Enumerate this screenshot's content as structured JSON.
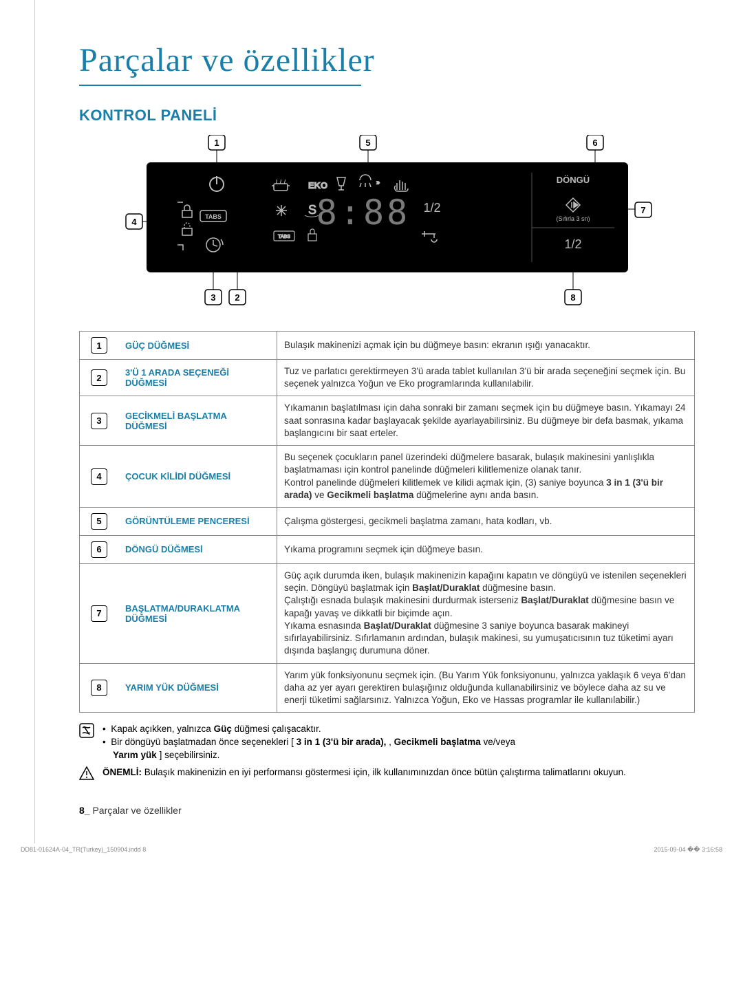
{
  "page": {
    "title": "Parçalar ve özellikler",
    "section_heading": "KONTROL PANELİ",
    "footer_text_prefix": "8_",
    "footer_text": "Parçalar ve özellikler",
    "print_left": "DD81-01624A-04_TR(Turkey)_150904.indd   8",
    "print_right": "2015-09-04   �� 3:16:58"
  },
  "panel": {
    "labels": {
      "tabs": "TABS",
      "eko": "EKO",
      "dongu": "DÖNGÜ",
      "reset": "(Sıfırla 3 sn)",
      "half": "1/2",
      "time": "8:88"
    },
    "callouts": [
      "1",
      "2",
      "3",
      "4",
      "5",
      "6",
      "7",
      "8"
    ],
    "colors": {
      "panel_bg": "#000",
      "panel_text": "#cfd2d3",
      "box_border": "#000"
    }
  },
  "features": [
    {
      "num": "1",
      "label": "GÜÇ DÜĞMESİ",
      "desc": "Bulaşık makinenizi açmak için bu düğmeye basın: ekranın ışığı yanacaktır."
    },
    {
      "num": "2",
      "label": "3'Ü 1 ARADA SEÇENEĞİ DÜĞMESİ",
      "desc": "Tuz ve parlatıcı gerektirmeyen 3'ü arada tablet kullanılan 3'ü bir arada seçeneğini seçmek için. Bu seçenek yalnızca Yoğun ve Eko programlarında kullanılabilir."
    },
    {
      "num": "3",
      "label": "GECİKMELİ BAŞLATMA DÜĞMESİ",
      "desc": "Yıkamanın başlatılması için daha sonraki bir zamanı seçmek için bu düğmeye basın. Yıkamayı 24 saat sonrasına kadar başlayacak şekilde ayarlayabilirsiniz. Bu düğmeye bir defa basmak, yıkama başlangıcını bir saat erteler."
    },
    {
      "num": "4",
      "label": "ÇOCUK KİLİDİ DÜĞMESİ",
      "desc": "Bu seçenek çocukların panel üzerindeki düğmelere basarak, bulaşık makinesini yanlışlıkla başlatmaması için kontrol panelinde düğmeleri kilitlemenize olanak tanır.\nKontrol panelinde düğmeleri kilitlemek ve kilidi açmak için, (3) saniye boyunca <b>3 in 1 (3'ü bir arada)</b>  ve <b>Gecikmeli başlatma</b> düğmelerine aynı anda basın."
    },
    {
      "num": "5",
      "label": "GÖRÜNTÜLEME PENCERESİ",
      "desc": "Çalışma göstergesi, gecikmeli başlatma zamanı, hata kodları, vb."
    },
    {
      "num": "6",
      "label": "DÖNGÜ DÜĞMESİ",
      "desc": "Yıkama programını seçmek için düğmeye basın."
    },
    {
      "num": "7",
      "label": "BAŞLATMA/DURAKLATMA DÜĞMESİ",
      "desc": "Güç açık durumda iken, bulaşık makinenizin kapağını kapatın ve döngüyü ve istenilen seçenekleri seçin. Döngüyü başlatmak için <b>Başlat/Duraklat</b> düğmesine basın.\nÇalıştığı esnada bulaşık makinesini durdurmak isterseniz <b>Başlat/Duraklat</b> düğmesine basın ve kapağı yavaş ve dikkatli bir biçimde açın.\nYıkama esnasında <b>Başlat/Duraklat</b> düğmesine 3 saniye boyunca basarak makineyi sıfırlayabilirsiniz. Sıfırlamanın ardından, bulaşık makinesi, su yumuşatıcısının tuz tüketimi ayarı dışında başlangıç durumuna döner."
    },
    {
      "num": "8",
      "label": "YARIM YÜK DÜĞMESİ",
      "desc": "Yarım yük fonksiyonunu seçmek için. (Bu Yarım Yük fonksiyonunu, yalnızca yaklaşık 6 veya 6'dan daha az yer ayarı gerektiren bulaşığınız olduğunda kullanabilirsiniz ve böylece daha az su ve enerji tüketimi sağlarsınız. Yalnızca Yoğun, Eko ve Hassas programlar ile kullanılabilir.)"
    }
  ],
  "notes": {
    "bullet1_pre": "Kapak açıkken, yalnızca ",
    "bullet1_bold": "Güç",
    "bullet1_post": " düğmesi çalışacaktır.",
    "bullet2_pre": "Bir döngüyü başlatmadan önce seçenekleri [ ",
    "bullet2_bold1": "3 in 1 (3'ü bir arada),",
    "bullet2_mid": " , ",
    "bullet2_bold2": "Gecikmeli başlatma",
    "bullet2_post": " ve/veya ",
    "bullet2_bold3": "Yarım yük",
    "bullet2_end": " ] seçebilirsiniz.",
    "warn_bold": "ÖNEMLİ: ",
    "warn_text": "Bulaşık makinenizin en iyi performansı göstermesi için, ilk kullanımınızdan önce bütün çalıştırma talimatlarını okuyun."
  }
}
